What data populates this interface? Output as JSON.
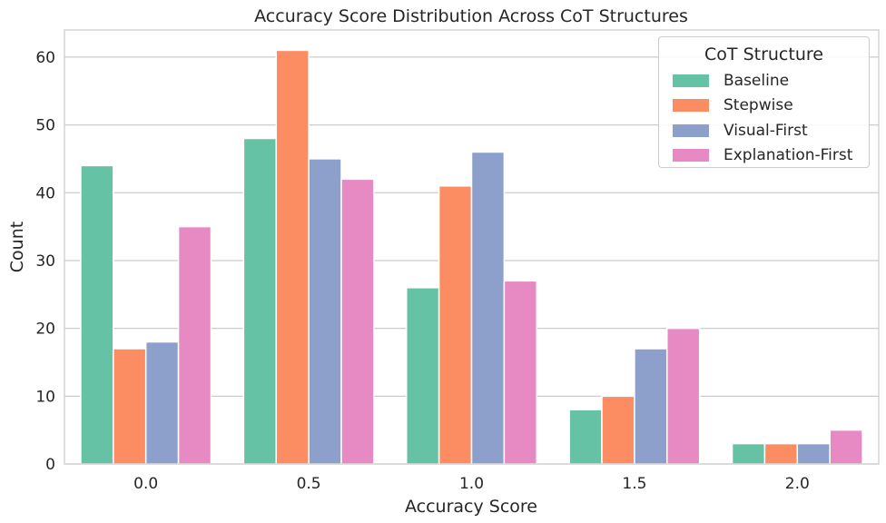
{
  "chart_data": {
    "type": "bar",
    "title": "Accuracy Score Distribution Across CoT Structures",
    "xlabel": "Accuracy Score",
    "ylabel": "Count",
    "categories": [
      "0.0",
      "0.5",
      "1.0",
      "1.5",
      "2.0"
    ],
    "yticks": [
      "0",
      "10",
      "20",
      "30",
      "40",
      "50",
      "60"
    ],
    "ylim": [
      0,
      64
    ],
    "grid": "horizontal",
    "legend_placement": "top-right",
    "legend_title": "CoT Structure",
    "series": [
      {
        "name": "Baseline",
        "color": "#66c2a5",
        "values": [
          44,
          48,
          26,
          8,
          3
        ]
      },
      {
        "name": "Stepwise",
        "color": "#fc8d62",
        "values": [
          17,
          61,
          41,
          10,
          3
        ]
      },
      {
        "name": "Visual-First",
        "color": "#8da0cb",
        "values": [
          18,
          45,
          46,
          17,
          3
        ]
      },
      {
        "name": "Explanation-First",
        "color": "#e78ac3",
        "values": [
          35,
          42,
          27,
          20,
          5
        ]
      }
    ]
  }
}
